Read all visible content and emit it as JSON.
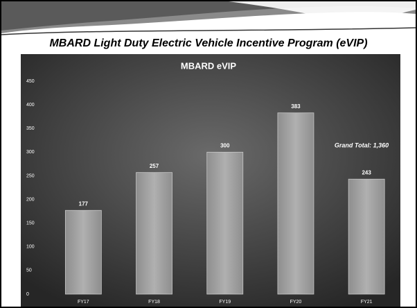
{
  "header": {
    "title": "MBARD Light Duty Electric Vehicle Incentive Program (eVIP)"
  },
  "chart_data": {
    "type": "bar",
    "title": "MBARD eVIP",
    "categories": [
      "FY17",
      "FY18",
      "FY19",
      "FY20",
      "FY21"
    ],
    "values": [
      177,
      257,
      300,
      383,
      243
    ],
    "color": "#a3a3a3",
    "ylim": [
      0,
      450
    ],
    "yticks": [
      0,
      50,
      100,
      150,
      200,
      250,
      300,
      350,
      400,
      450
    ],
    "grid": false,
    "annotations": [
      {
        "text": "Grand Total: 1,360"
      }
    ]
  }
}
